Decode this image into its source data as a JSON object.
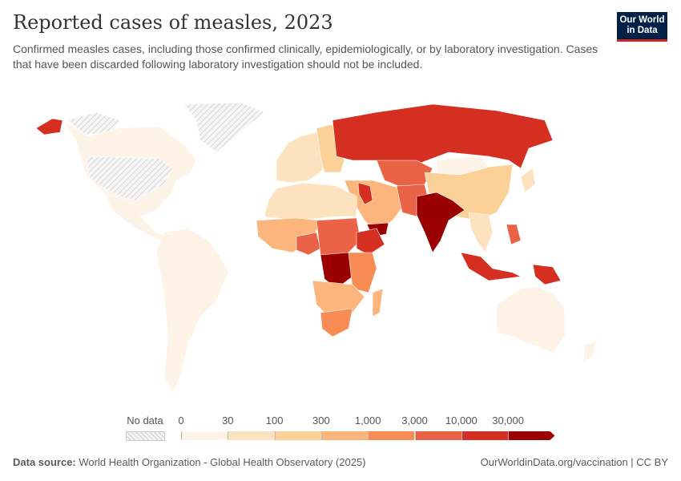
{
  "title": "Reported cases of measles, 2023",
  "subtitle": "Confirmed measles cases, including those confirmed clinically, epidemiologically, or by laboratory investigation. Cases that have been discarded following laboratory investigation should not be included.",
  "logo": {
    "line1": "Our World",
    "line2": "in Data"
  },
  "legend": {
    "no_data_label": "No data",
    "ticks": [
      "0",
      "30",
      "100",
      "300",
      "1,000",
      "3,000",
      "10,000",
      "30,000"
    ],
    "colors": [
      "#fdf3e7",
      "#fde2bf",
      "#fcd197",
      "#fbb57d",
      "#f98b55",
      "#ea6347",
      "#d52f21",
      "#9b0000"
    ],
    "no_data_color": "#e8e8e8"
  },
  "map_regions": {
    "north-america": 0,
    "greenland": -1,
    "canada-arctic": -1,
    "alaska": 6,
    "central-america": 0,
    "south-america": 0,
    "western-europe": 1,
    "eastern-europe": 2,
    "russia": 6,
    "kazakhstan-central-asia": 5,
    "middle-east": 3,
    "iraq": 6,
    "yemen": 7,
    "north-africa": 1,
    "west-africa": 3,
    "nigeria": 5,
    "central-africa": 5,
    "drc": 7,
    "ethiopia": 6,
    "east-africa": 4,
    "southern-africa": 3,
    "south-africa": 4,
    "madagascar": 3,
    "pakistan-afghanistan": 5,
    "india": 7,
    "china": 2,
    "mongolia": 0,
    "southeast-asia": 1,
    "indonesia": 6,
    "philippines": 5,
    "papua": 6,
    "australia": 0,
    "new-zealand": 0,
    "japan": 1
  },
  "footer": {
    "source_label": "Data source:",
    "source": "World Health Organization - Global Health Observatory (2025)",
    "link": "OurWorldinData.org/vaccination | CC BY"
  }
}
